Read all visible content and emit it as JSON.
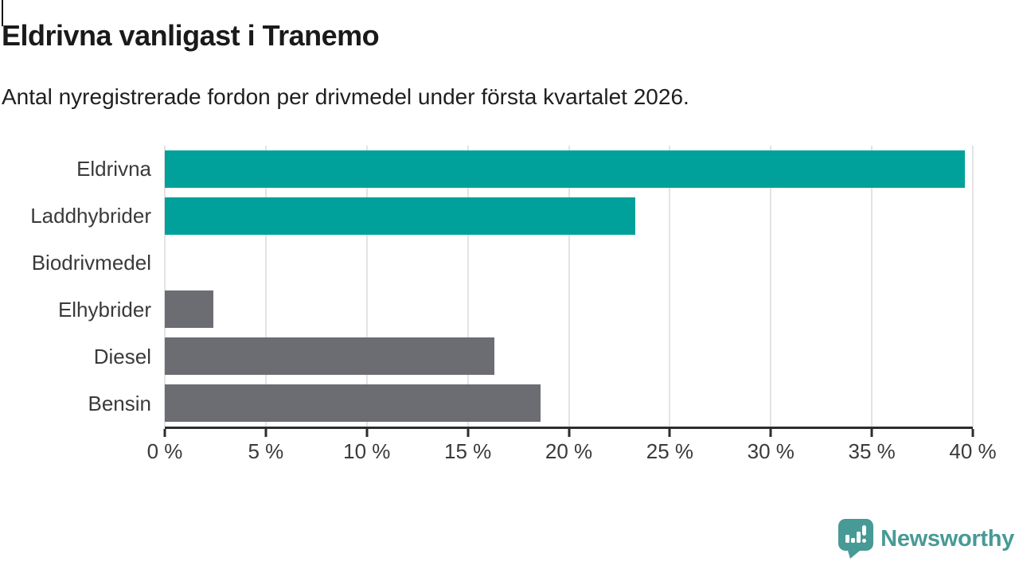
{
  "header": {
    "title": "Eldrivna vanligast i Tranemo",
    "subtitle": "Antal nyregistrerade fordon per drivmedel under första kvartalet 2026."
  },
  "chart_data": {
    "type": "bar",
    "orientation": "horizontal",
    "title": "Eldrivna vanligast i Tranemo",
    "subtitle": "Antal nyregistrerade fordon per drivmedel under första kvartalet 2026.",
    "categories": [
      "Eldrivna",
      "Laddhybrider",
      "Biodrivmedel",
      "Elhybrider",
      "Diesel",
      "Bensin"
    ],
    "values": [
      39.6,
      23.3,
      0,
      2.4,
      16.3,
      18.6
    ],
    "unit": "%",
    "xlim": [
      0,
      40
    ],
    "tick_step": 5,
    "x_tick_labels": [
      "0 %",
      "5 %",
      "10 %",
      "15 %",
      "20 %",
      "25 %",
      "30 %",
      "35 %",
      "40 %"
    ],
    "bar_colors": [
      "#00a19a",
      "#00a19a",
      "#6c6c73",
      "#6c6c73",
      "#6c6c73",
      "#6c6c73"
    ],
    "highlight_color": "#00a19a",
    "default_color": "#6c6c73",
    "gridline_color": "#e3e3e6",
    "axis_color": "#2d2d2d",
    "grid": true,
    "legend": "none"
  },
  "footer": {
    "brand": "Newsworthy",
    "brand_color": "#479a96"
  }
}
